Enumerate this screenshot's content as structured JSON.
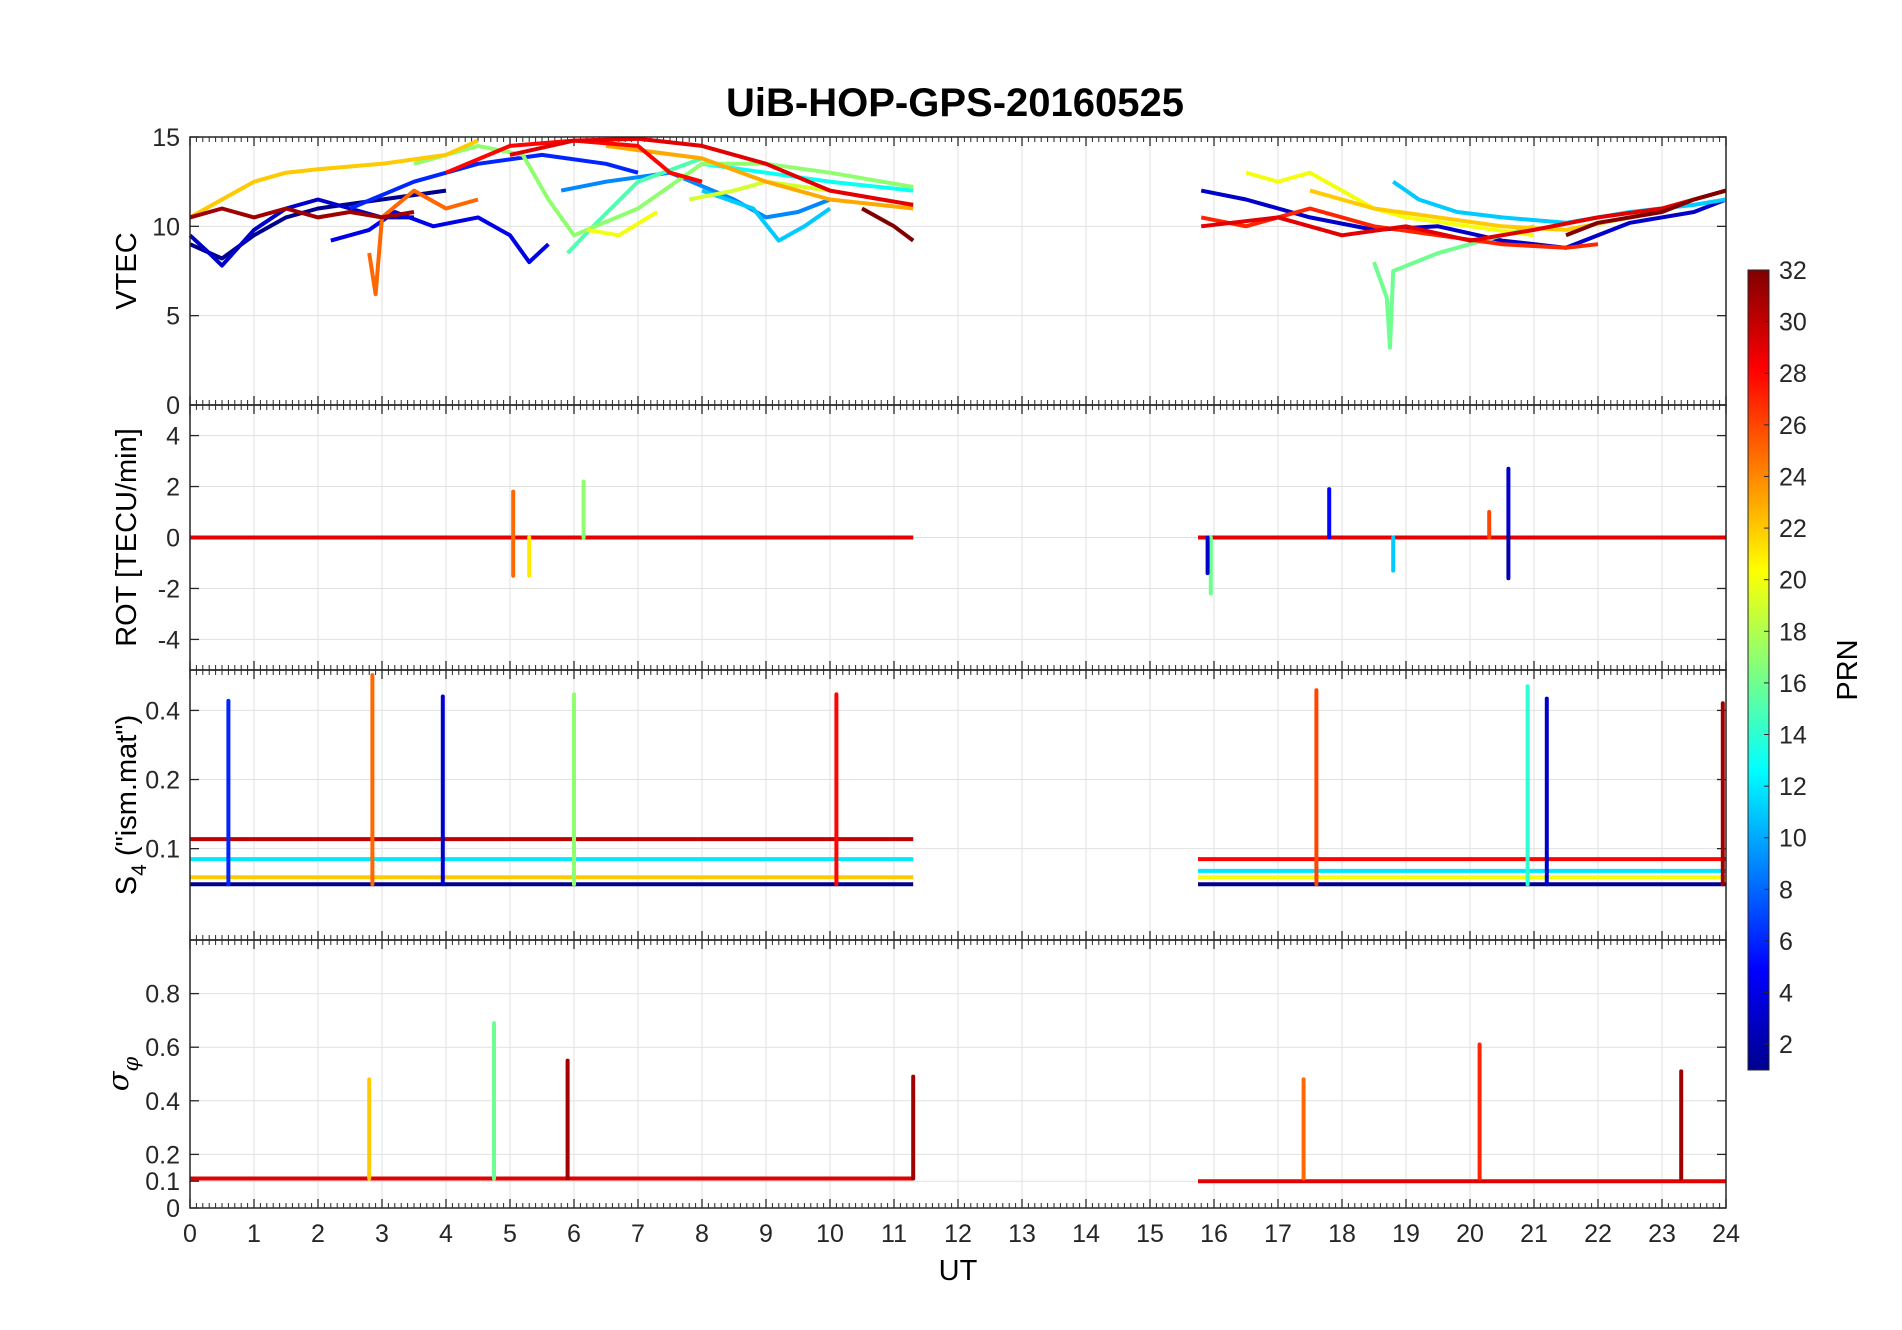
{
  "chart_data": {
    "type": "line",
    "title": "UiB-HOP-GPS-20160525",
    "xlabel": "UT",
    "xlim": [
      0,
      24
    ],
    "x_ticks": [
      "0",
      "1",
      "2",
      "3",
      "4",
      "5",
      "6",
      "7",
      "8",
      "9",
      "10",
      "11",
      "12",
      "13",
      "14",
      "15",
      "16",
      "17",
      "18",
      "19",
      "20",
      "21",
      "22",
      "23",
      "24"
    ],
    "data_gap_ut": [
      11.3,
      15.75
    ],
    "grid": true,
    "panels": [
      {
        "id": "vtec",
        "ylabel": "VTEC",
        "ylim": [
          0,
          15
        ],
        "y_ticks": [
          "0",
          "5",
          "10",
          "15"
        ],
        "series": [
          {
            "prn": 1,
            "x": [
              0,
              0.5,
              1,
              1.5,
              2,
              3,
              4
            ],
            "y": [
              9.0,
              8.2,
              9.5,
              10.5,
              11.0,
              11.5,
              12.0
            ]
          },
          {
            "prn": 3,
            "x": [
              0,
              0.3,
              0.5,
              1,
              1.5,
              2,
              2.5,
              3,
              3.5
            ],
            "y": [
              9.5,
              8.5,
              7.8,
              9.8,
              11.0,
              11.5,
              11.0,
              10.5,
              10.5
            ]
          },
          {
            "prn": 4,
            "x": [
              2.2,
              2.8,
              3.2,
              3.8,
              4.5,
              5.0,
              5.3,
              5.6
            ],
            "y": [
              9.2,
              9.8,
              10.8,
              10.0,
              10.5,
              9.5,
              8.0,
              9.0
            ]
          },
          {
            "prn": 6,
            "x": [
              2.5,
              3.5,
              4.5,
              5.5,
              6.5,
              7.0
            ],
            "y": [
              11.0,
              12.5,
              13.5,
              14.0,
              13.5,
              13.0
            ]
          },
          {
            "prn": 9,
            "x": [
              5.8,
              6.5,
              7.5,
              8.5,
              9.0,
              9.5,
              10.0
            ],
            "y": [
              12.0,
              12.5,
              13.0,
              11.5,
              10.5,
              10.8,
              11.5
            ]
          },
          {
            "prn": 11,
            "x": [
              8.0,
              8.8,
              9.2,
              9.6,
              10.0
            ],
            "y": [
              12.0,
              11.0,
              9.2,
              10.0,
              11.0
            ]
          },
          {
            "prn": 13,
            "x": [
              8.0,
              9.0,
              10.0,
              11.3
            ],
            "y": [
              13.5,
              13.0,
              12.5,
              12.0
            ]
          },
          {
            "prn": 15,
            "x": [
              5.9,
              6.3,
              7.0,
              8.0
            ],
            "y": [
              8.5,
              10.0,
              12.5,
              13.8
            ]
          },
          {
            "prn": 17,
            "x": [
              3.5,
              4.5,
              5.2,
              5.6,
              6.0,
              7.0,
              8.0,
              9.0,
              10.0,
              11.3
            ],
            "y": [
              13.5,
              14.5,
              14.0,
              11.5,
              9.5,
              11.0,
              13.5,
              13.5,
              13.0,
              12.2
            ]
          },
          {
            "prn": 19,
            "x": [
              7.8,
              8.5,
              9.0,
              10.0
            ],
            "y": [
              11.5,
              12.0,
              12.5,
              12.0
            ]
          },
          {
            "prn": 20,
            "x": [
              6.2,
              6.7,
              7.3
            ],
            "y": [
              9.8,
              9.5,
              10.8
            ]
          },
          {
            "prn": 22,
            "x": [
              0,
              0.5,
              1,
              1.5,
              2,
              3,
              4,
              4.5
            ],
            "y": [
              10.5,
              11.5,
              12.5,
              13.0,
              13.2,
              13.5,
              14.0,
              14.8
            ]
          },
          {
            "prn": 23,
            "x": [
              6.5,
              8,
              9,
              10,
              11.3
            ],
            "y": [
              14.5,
              13.8,
              12.5,
              11.5,
              11.0
            ]
          },
          {
            "prn": 25,
            "x": [
              2.8,
              2.9,
              3.0,
              3.5,
              4.0,
              4.5
            ],
            "y": [
              8.5,
              6.2,
              10.5,
              12.0,
              11.0,
              11.5
            ]
          },
          {
            "prn": 28,
            "x": [
              4.0,
              5.0,
              6.0,
              7.0,
              7.5,
              8.0
            ],
            "y": [
              13.0,
              14.5,
              14.8,
              14.5,
              13.0,
              12.5
            ]
          },
          {
            "prn": 29,
            "x": [
              5.0,
              6.0,
              7.0,
              8.0,
              9.0,
              10.0,
              11.3
            ],
            "y": [
              14.0,
              14.8,
              14.9,
              14.5,
              13.5,
              12.0,
              11.2
            ]
          },
          {
            "prn": 31,
            "x": [
              0,
              0.5,
              1,
              1.5,
              2.0,
              2.5,
              3.0,
              3.5
            ],
            "y": [
              10.5,
              11.0,
              10.5,
              11.0,
              10.5,
              10.8,
              10.5,
              10.8
            ]
          },
          {
            "prn": 32,
            "x": [
              10.5,
              11.0,
              11.3
            ],
            "y": [
              11.0,
              10.0,
              9.2
            ]
          },
          {
            "prn": 3,
            "x": [
              15.8,
              16.5,
              17.5,
              18.5,
              19.5,
              20.5,
              21.5,
              22.5,
              23.5,
              24
            ],
            "y": [
              12.0,
              11.5,
              10.5,
              9.8,
              10.0,
              9.2,
              8.8,
              10.2,
              10.8,
              11.5
            ]
          },
          {
            "prn": 11,
            "x": [
              18.8,
              19.2,
              19.8,
              20.5,
              21.5,
              22.5,
              23.5,
              24
            ],
            "y": [
              12.5,
              11.5,
              10.8,
              10.5,
              10.2,
              10.8,
              11.2,
              11.5
            ]
          },
          {
            "prn": 16,
            "x": [
              18.5,
              18.7,
              18.75,
              18.8,
              19.5,
              20.5,
              21.0
            ],
            "y": [
              8.0,
              6.0,
              3.2,
              7.5,
              8.5,
              9.5,
              10.0
            ]
          },
          {
            "prn": 20,
            "x": [
              16.5,
              17.0,
              17.5,
              18.0,
              18.5,
              19.0,
              20.0,
              21.0
            ],
            "y": [
              13.0,
              12.5,
              13.0,
              12.0,
              11.0,
              10.5,
              10.0,
              9.5
            ]
          },
          {
            "prn": 22,
            "x": [
              17.5,
              18.5,
              19.5,
              20.5,
              21.5,
              22.5,
              23.5
            ],
            "y": [
              12.0,
              11.0,
              10.5,
              10.0,
              9.8,
              10.5,
              11.5
            ]
          },
          {
            "prn": 27,
            "x": [
              15.8,
              16.5,
              17.5,
              18.5,
              19.5,
              20.5,
              21.5,
              22.0
            ],
            "y": [
              10.5,
              10.0,
              11.0,
              10.0,
              9.5,
              9.0,
              8.8,
              9.0
            ]
          },
          {
            "prn": 29,
            "x": [
              15.8,
              17.0,
              18.0,
              19.0,
              20.0,
              21.0,
              22.0,
              23.0,
              24
            ],
            "y": [
              10.0,
              10.5,
              9.5,
              10.0,
              9.2,
              9.8,
              10.5,
              11.0,
              12.0
            ]
          },
          {
            "prn": 32,
            "x": [
              21.5,
              22.0,
              23.0,
              23.5,
              24
            ],
            "y": [
              9.5,
              10.2,
              10.8,
              11.5,
              12.0
            ]
          }
        ]
      },
      {
        "id": "rot",
        "ylabel": "ROT [TECU/min]",
        "ylim": [
          -5.2,
          5.2
        ],
        "y_ticks": [
          "-4",
          "-2",
          "0",
          "2",
          "4"
        ],
        "series": [
          {
            "prn": 2,
            "x": [
              0,
              11.3
            ],
            "y": [
              0,
              0
            ]
          },
          {
            "prn": 12,
            "x": [
              0,
              11.3
            ],
            "y": [
              0,
              0
            ]
          },
          {
            "prn": 20,
            "x": [
              0,
              11.3
            ],
            "y": [
              0,
              0
            ]
          },
          {
            "prn": 29,
            "x": [
              0,
              11.3
            ],
            "y": [
              0,
              0
            ]
          },
          {
            "prn": 2,
            "x": [
              15.75,
              24
            ],
            "y": [
              0,
              0
            ]
          },
          {
            "prn": 12,
            "x": [
              15.75,
              24
            ],
            "y": [
              0,
              0
            ]
          },
          {
            "prn": 20,
            "x": [
              15.75,
              24
            ],
            "y": [
              0,
              0
            ]
          },
          {
            "prn": 29,
            "x": [
              15.75,
              24
            ],
            "y": [
              0,
              0
            ]
          }
        ],
        "spikes": [
          {
            "prn": 25,
            "x": 5.05,
            "y": 1.8
          },
          {
            "prn": 25,
            "x": 5.05,
            "y": -1.5
          },
          {
            "prn": 17,
            "x": 6.15,
            "y": 2.2
          },
          {
            "prn": 21,
            "x": 5.3,
            "y": -1.5
          },
          {
            "prn": 5,
            "x": 17.8,
            "y": 1.9
          },
          {
            "prn": 16,
            "x": 15.95,
            "y": -2.2
          },
          {
            "prn": 3,
            "x": 15.9,
            "y": -1.4
          },
          {
            "prn": 3,
            "x": 20.6,
            "y": 2.7
          },
          {
            "prn": 2,
            "x": 20.6,
            "y": -1.6
          },
          {
            "prn": 11,
            "x": 18.8,
            "y": -1.3
          },
          {
            "prn": 26,
            "x": 20.3,
            "y": 1.0
          }
        ]
      },
      {
        "id": "s4",
        "ylabel": "S",
        "ylabel_sub": "4",
        "ylabel_tail": " (\"ism.mat\")",
        "ylim": [
          0.04,
          0.6
        ],
        "y_ticks": [
          "0.1",
          "0.2",
          "0.4"
        ],
        "y_tick_values": [
          0.1,
          0.2,
          0.4
        ],
        "y_scale": "log",
        "series": [
          {
            "prn": 1,
            "x": [
              0,
              11.3
            ],
            "y": [
              0.07,
              0.07
            ]
          },
          {
            "prn": 12,
            "x": [
              0,
              11.3
            ],
            "y": [
              0.09,
              0.09
            ]
          },
          {
            "prn": 22,
            "x": [
              0,
              11.3
            ],
            "y": [
              0.075,
              0.075
            ]
          },
          {
            "prn": 30,
            "x": [
              0,
              11.3
            ],
            "y": [
              0.11,
              0.11
            ]
          },
          {
            "prn": 1,
            "x": [
              15.75,
              24
            ],
            "y": [
              0.07,
              0.07
            ]
          },
          {
            "prn": 12,
            "x": [
              15.75,
              24
            ],
            "y": [
              0.08,
              0.08
            ]
          },
          {
            "prn": 20,
            "x": [
              15.75,
              24
            ],
            "y": [
              0.075,
              0.075
            ]
          },
          {
            "prn": 28,
            "x": [
              15.75,
              24
            ],
            "y": [
              0.09,
              0.09
            ]
          }
        ],
        "spikes": [
          {
            "prn": 25,
            "x": 2.85,
            "y": 0.57
          },
          {
            "prn": 6,
            "x": 0.6,
            "y": 0.44
          },
          {
            "prn": 3,
            "x": 3.95,
            "y": 0.46
          },
          {
            "prn": 17,
            "x": 6.0,
            "y": 0.47
          },
          {
            "prn": 28,
            "x": 10.1,
            "y": 0.47
          },
          {
            "prn": 26,
            "x": 17.6,
            "y": 0.49
          },
          {
            "prn": 14,
            "x": 20.9,
            "y": 0.51
          },
          {
            "prn": 3,
            "x": 21.2,
            "y": 0.45
          },
          {
            "prn": 31,
            "x": 23.95,
            "y": 0.43
          }
        ]
      },
      {
        "id": "sigma_phi",
        "ylabel": "σ",
        "ylabel_sub": "φ",
        "ylim": [
          0,
          1.0
        ],
        "y_ticks": [
          "0",
          "0.1",
          "0.2",
          "0.4",
          "0.6",
          "0.8"
        ],
        "y_tick_values": [
          0,
          0.1,
          0.2,
          0.4,
          0.6,
          0.8
        ],
        "series": [
          {
            "prn": 29,
            "x": [
              0,
              11.3
            ],
            "y": [
              0.11,
              0.11
            ]
          },
          {
            "prn": 29,
            "x": [
              15.75,
              24
            ],
            "y": [
              0.1,
              0.1
            ]
          }
        ],
        "spikes": [
          {
            "prn": 22,
            "x": 2.8,
            "y": 0.48
          },
          {
            "prn": 16,
            "x": 4.75,
            "y": 0.69
          },
          {
            "prn": 31,
            "x": 5.9,
            "y": 0.55
          },
          {
            "prn": 31,
            "x": 11.3,
            "y": 0.49
          },
          {
            "prn": 25,
            "x": 17.4,
            "y": 0.48
          },
          {
            "prn": 27,
            "x": 20.15,
            "y": 0.61
          },
          {
            "prn": 31,
            "x": 23.3,
            "y": 0.51
          }
        ]
      }
    ],
    "colorbar": {
      "label": "PRN",
      "colormap": "jet",
      "range": [
        1,
        32
      ],
      "ticks": [
        "2",
        "4",
        "6",
        "8",
        "10",
        "12",
        "14",
        "16",
        "18",
        "20",
        "22",
        "24",
        "26",
        "28",
        "30",
        "32"
      ]
    }
  }
}
